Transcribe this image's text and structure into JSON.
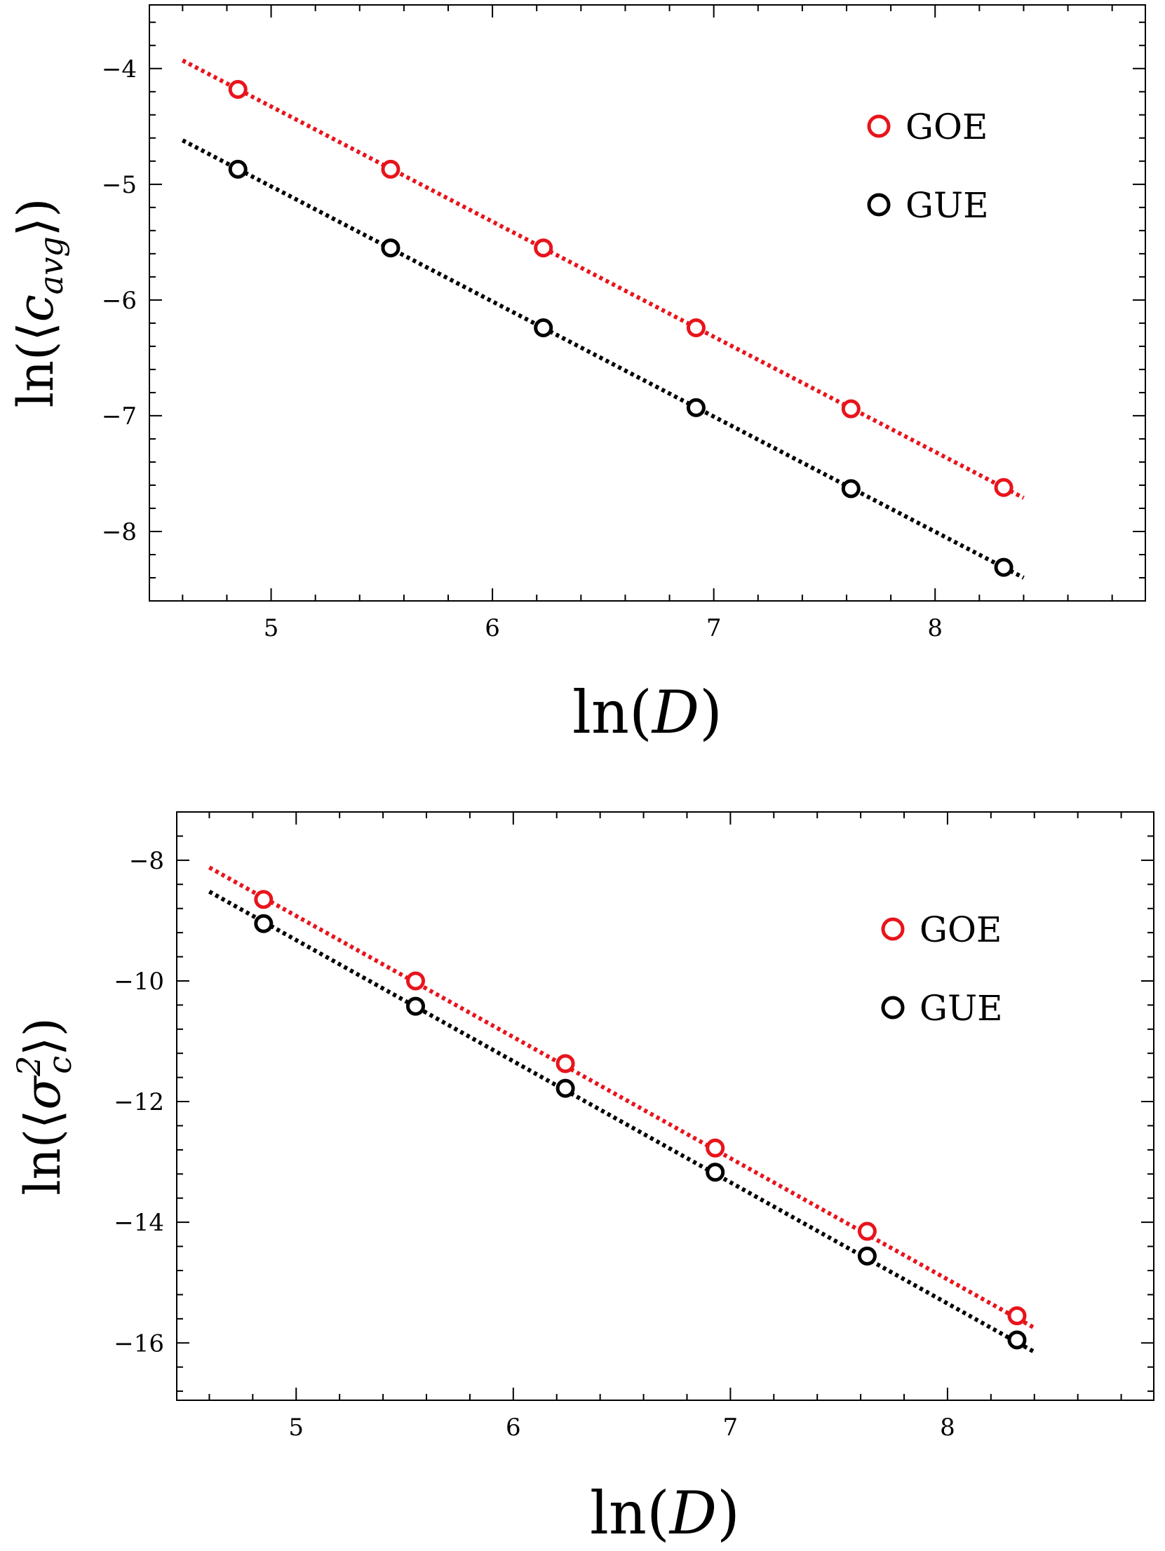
{
  "chart_data": [
    {
      "type": "scatter",
      "xlabel": "ln(D)",
      "ylabel": "ln(⟨c_avg⟩)",
      "xlim": [
        4.45,
        8.95
      ],
      "ylim": [
        -8.6,
        -3.45
      ],
      "xticks": [
        5,
        6,
        7,
        8
      ],
      "yticks": [
        -4,
        -5,
        -6,
        -7,
        -8
      ],
      "grid": false,
      "legend_position": "top-right",
      "series": [
        {
          "name": "GOE",
          "color": "#e8141c",
          "x": [
            4.85,
            5.54,
            6.23,
            6.92,
            7.62,
            8.31
          ],
          "y": [
            -4.18,
            -4.87,
            -5.55,
            -6.24,
            -6.94,
            -7.62
          ],
          "fit": {
            "x": [
              4.6,
              8.4
            ],
            "y": [
              -3.93,
              -7.71
            ]
          }
        },
        {
          "name": "GUE",
          "color": "#000000",
          "x": [
            4.85,
            5.54,
            6.23,
            6.92,
            7.62,
            8.31
          ],
          "y": [
            -4.87,
            -5.55,
            -6.24,
            -6.93,
            -7.63,
            -8.31
          ],
          "fit": {
            "x": [
              4.6,
              8.4
            ],
            "y": [
              -4.62,
              -8.4
            ]
          }
        }
      ]
    },
    {
      "type": "scatter",
      "xlabel": "ln(D)",
      "ylabel": "ln(⟨σ_c²⟩)",
      "xlim": [
        4.45,
        8.95
      ],
      "ylim": [
        -16.95,
        -7.2
      ],
      "xticks": [
        5,
        6,
        7,
        8
      ],
      "yticks": [
        -8,
        -10,
        -12,
        -14,
        -16
      ],
      "grid": false,
      "legend_position": "top-right",
      "series": [
        {
          "name": "GOE",
          "color": "#e8141c",
          "x": [
            4.85,
            5.55,
            6.24,
            6.93,
            7.63,
            8.32
          ],
          "y": [
            -8.65,
            -10.0,
            -11.37,
            -12.77,
            -14.15,
            -15.55
          ],
          "fit": {
            "x": [
              4.6,
              8.4
            ],
            "y": [
              -8.12,
              -15.75
            ]
          }
        },
        {
          "name": "GUE",
          "color": "#000000",
          "x": [
            4.85,
            5.55,
            6.24,
            6.93,
            7.63,
            8.32
          ],
          "y": [
            -9.05,
            -10.42,
            -11.78,
            -13.17,
            -14.56,
            -15.95
          ],
          "fit": {
            "x": [
              4.6,
              8.4
            ],
            "y": [
              -8.52,
              -16.15
            ]
          }
        }
      ]
    }
  ]
}
